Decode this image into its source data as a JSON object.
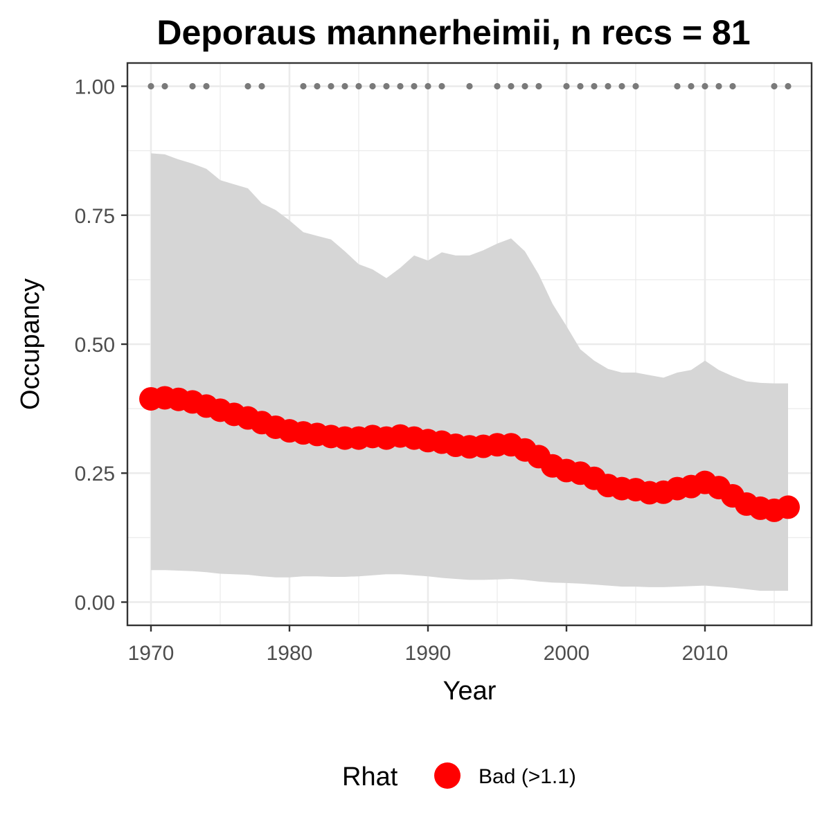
{
  "chart_data": {
    "type": "line",
    "title": "Deporaus mannerheimii, n recs = 81",
    "xlabel": "Year",
    "ylabel": "Occupancy",
    "xlim": [
      1968.3,
      2017.7
    ],
    "ylim": [
      -0.045,
      1.045
    ],
    "x_ticks": [
      1970,
      1980,
      1990,
      2000,
      2010
    ],
    "x_tick_labels": [
      "1970",
      "1980",
      "1990",
      "2000",
      "2010"
    ],
    "y_ticks": [
      0,
      0.25,
      0.5,
      0.75,
      1
    ],
    "y_tick_labels": [
      "0.00",
      "0.25",
      "0.50",
      "0.75",
      "1.00"
    ],
    "grid": true,
    "legend": {
      "title": "Rhat",
      "position": "bottom",
      "entries": [
        {
          "label": "Bad (>1.1)",
          "color": "#ff0000"
        }
      ]
    },
    "colors": {
      "mean": "#ff0000",
      "band": "#d6d6d6",
      "records": "#7a7a7a",
      "grid": "#ebebeb",
      "frame": "#333333"
    },
    "years": [
      1970,
      1971,
      1972,
      1973,
      1974,
      1975,
      1976,
      1977,
      1978,
      1979,
      1980,
      1981,
      1982,
      1983,
      1984,
      1985,
      1986,
      1987,
      1988,
      1989,
      1990,
      1991,
      1992,
      1993,
      1994,
      1995,
      1996,
      1997,
      1998,
      1999,
      2000,
      2001,
      2002,
      2003,
      2004,
      2005,
      2006,
      2007,
      2008,
      2009,
      2010,
      2011,
      2012,
      2013,
      2014,
      2015,
      2016
    ],
    "series": [
      {
        "name": "Bad (>1.1)",
        "values": [
          0.394,
          0.396,
          0.393,
          0.388,
          0.38,
          0.372,
          0.364,
          0.357,
          0.348,
          0.339,
          0.332,
          0.328,
          0.325,
          0.321,
          0.318,
          0.318,
          0.321,
          0.318,
          0.322,
          0.318,
          0.313,
          0.31,
          0.304,
          0.301,
          0.302,
          0.305,
          0.305,
          0.295,
          0.282,
          0.264,
          0.255,
          0.25,
          0.24,
          0.226,
          0.22,
          0.218,
          0.212,
          0.213,
          0.22,
          0.224,
          0.232,
          0.222,
          0.206,
          0.19,
          0.182,
          0.178,
          0.184
        ]
      }
    ],
    "upper": [
      0.87,
      0.868,
      0.858,
      0.85,
      0.84,
      0.818,
      0.81,
      0.802,
      0.773,
      0.76,
      0.74,
      0.717,
      0.71,
      0.703,
      0.68,
      0.655,
      0.645,
      0.628,
      0.648,
      0.672,
      0.662,
      0.678,
      0.672,
      0.672,
      0.682,
      0.695,
      0.705,
      0.68,
      0.635,
      0.578,
      0.535,
      0.49,
      0.468,
      0.452,
      0.445,
      0.445,
      0.44,
      0.435,
      0.445,
      0.45,
      0.468,
      0.45,
      0.438,
      0.428,
      0.425,
      0.424,
      0.424
    ],
    "lower": [
      0.062,
      0.062,
      0.061,
      0.06,
      0.058,
      0.055,
      0.054,
      0.053,
      0.05,
      0.048,
      0.048,
      0.05,
      0.05,
      0.049,
      0.049,
      0.05,
      0.052,
      0.054,
      0.054,
      0.052,
      0.05,
      0.047,
      0.045,
      0.043,
      0.043,
      0.044,
      0.045,
      0.043,
      0.04,
      0.038,
      0.037,
      0.036,
      0.034,
      0.032,
      0.03,
      0.03,
      0.029,
      0.029,
      0.03,
      0.031,
      0.032,
      0.03,
      0.028,
      0.025,
      0.022,
      0.022,
      0.022
    ],
    "record_years": [
      1970,
      1971,
      1973,
      1974,
      1977,
      1978,
      1981,
      1982,
      1983,
      1984,
      1985,
      1986,
      1987,
      1988,
      1989,
      1990,
      1991,
      1993,
      1995,
      1996,
      1997,
      1998,
      2000,
      2001,
      2002,
      2003,
      2004,
      2005,
      2008,
      2009,
      2010,
      2011,
      2012,
      2015,
      2016
    ],
    "record_value": 1.0
  }
}
